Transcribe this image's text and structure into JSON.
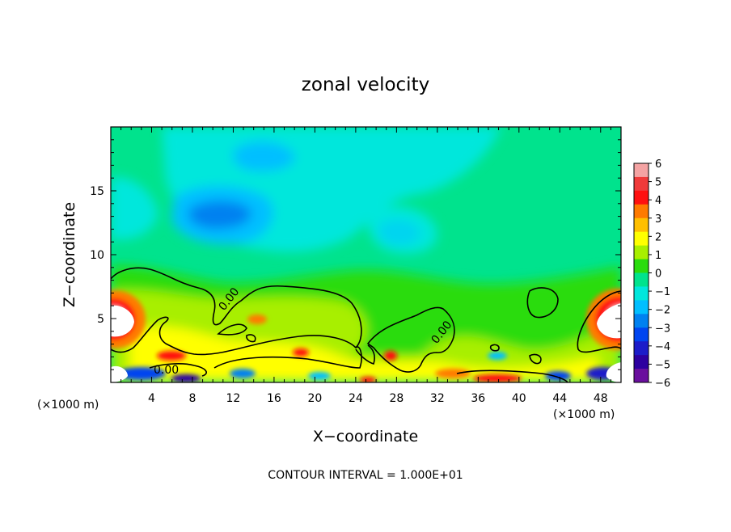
{
  "chart_data": {
    "type": "heatmap",
    "title": "zonal velocity",
    "xlabel": "X−coordinate",
    "ylabel": "Z−coordinate",
    "x_unit": "(×1000 m)",
    "y_unit": "(×1000 m)",
    "xlim": [
      0,
      50
    ],
    "ylim": [
      0,
      20
    ],
    "x_ticks": [
      4,
      8,
      12,
      16,
      20,
      24,
      28,
      32,
      36,
      40,
      44,
      48
    ],
    "y_ticks": [
      5,
      10,
      15
    ],
    "colorbar": {
      "levels": [
        6,
        5,
        4,
        3,
        2,
        1,
        0,
        -1,
        -2,
        -3,
        -4,
        -5,
        -6
      ],
      "labels": [
        "6",
        "5",
        "4",
        "3",
        "2",
        "1",
        "0",
        "−1",
        "−2",
        "−3",
        "−4",
        "−5",
        "−6"
      ],
      "colors": [
        "#f4a3a3",
        "#f03a3a",
        "#ff1010",
        "#ff7a00",
        "#ffbf00",
        "#ffff00",
        "#a8ef00",
        "#2adc0e",
        "#00e38d",
        "#00e7dc",
        "#00bfff",
        "#0081f0",
        "#0045f0",
        "#1c1cc9",
        "#2d00a0",
        "#6a0f9e"
      ]
    },
    "contour_label": "0.00",
    "contour_interval_text": "CONTOUR INTERVAL = 1.000E+01",
    "features": [
      {
        "name": "upper-negative-core-1",
        "x": 13.0,
        "z": 13.5,
        "value": -3
      },
      {
        "name": "upper-negative-core-2",
        "x": 15.0,
        "z": 17.5,
        "value": -2.5
      },
      {
        "name": "mid-negative-core",
        "x": 29.0,
        "z": 12.0,
        "value": -2
      },
      {
        "name": "left-boundary-max",
        "x": 1.0,
        "z": 4.5,
        "value": 6
      },
      {
        "name": "right-boundary-max",
        "x": 49.0,
        "z": 4.5,
        "value": 6
      }
    ]
  }
}
